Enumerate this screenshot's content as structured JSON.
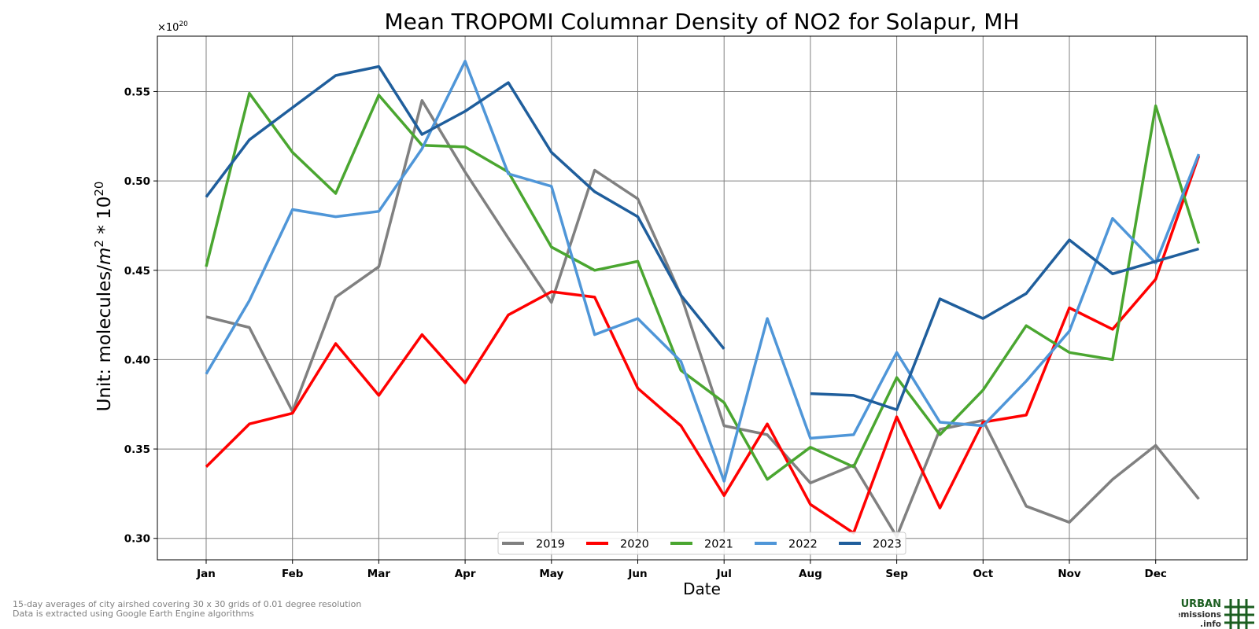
{
  "chart_data": {
    "type": "line",
    "title": "Mean TROPOMI Columnar Density of NO2 for Solapur, MH",
    "xlabel": "Date",
    "ylabel_prefix": "Unit: molecules/",
    "ylabel_unit": "m",
    "ylabel_unit_sup": "2",
    "ylabel_mid": " * 10",
    "ylabel_sup": "20",
    "offset_text": "×10",
    "offset_sup": "20",
    "x_ticks": [
      "Jan",
      "Feb",
      "Mar",
      "Apr",
      "May",
      "Jun",
      "Jul",
      "Aug",
      "Sep",
      "Oct",
      "Nov",
      "Dec"
    ],
    "y_ticks": [
      0.3,
      0.35,
      0.4,
      0.45,
      0.5,
      0.55
    ],
    "ylim": [
      0.288,
      0.581
    ],
    "grid": true,
    "legend_position": "bottom-center",
    "series": [
      {
        "name": "2019",
        "color": "#808080",
        "values": [
          0.424,
          0.418,
          0.371,
          0.435,
          0.452,
          0.545,
          0.505,
          0.468,
          0.432,
          0.506,
          0.49,
          0.436,
          0.363,
          0.358,
          0.331,
          0.341,
          0.301,
          0.361,
          0.366,
          0.318,
          0.309,
          0.333,
          0.352,
          0.322
        ]
      },
      {
        "name": "2020",
        "color": "#ff0000",
        "values": [
          0.34,
          0.364,
          0.37,
          0.409,
          0.38,
          0.414,
          0.387,
          0.425,
          0.438,
          0.435,
          0.384,
          0.363,
          0.324,
          0.364,
          0.319,
          0.303,
          0.368,
          0.317,
          0.365,
          0.369,
          0.429,
          0.417,
          0.445,
          0.514
        ]
      },
      {
        "name": "2021",
        "color": "#4aa630",
        "values": [
          0.452,
          0.549,
          0.516,
          0.493,
          0.548,
          0.52,
          0.519,
          0.505,
          0.463,
          0.45,
          0.455,
          0.394,
          0.376,
          0.333,
          0.351,
          0.34,
          0.39,
          0.358,
          0.383,
          0.419,
          0.404,
          0.4,
          0.542,
          0.465
        ]
      },
      {
        "name": "2022",
        "color": "#4f96d8",
        "values": [
          0.392,
          0.433,
          0.484,
          0.48,
          0.483,
          0.518,
          0.567,
          0.504,
          0.497,
          0.414,
          0.423,
          0.399,
          0.332,
          0.423,
          0.356,
          0.358,
          0.404,
          0.365,
          0.363,
          0.388,
          0.416,
          0.479,
          0.454,
          0.515
        ]
      },
      {
        "name": "2023",
        "color": "#1f5e9c",
        "values": [
          0.491,
          0.523,
          0.541,
          0.559,
          0.564,
          0.526,
          0.539,
          0.555,
          0.516,
          0.494,
          0.48,
          0.436,
          0.406,
          null,
          0.381,
          0.38,
          0.372,
          0.434,
          0.423,
          0.437,
          0.467,
          0.448,
          0.455,
          0.462
        ]
      }
    ]
  },
  "footnote": {
    "line1": "15-day averages of city airshed covering 30 x 30 grids of 0.01 degree resolution",
    "line2": "Data is extracted using Google Earth Engine algorithms"
  },
  "logo": {
    "line1": "URBAN",
    "line2": "emissions",
    "line3": ".info"
  }
}
